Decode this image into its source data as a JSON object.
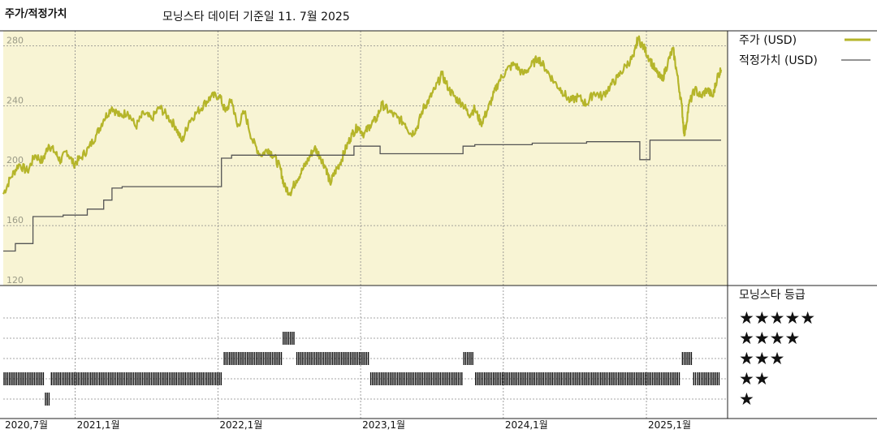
{
  "header": {
    "chart_title": "주가/적정가치",
    "as_of": "모닝스타 데이터 기준일 11. 7월 2025"
  },
  "legend": {
    "price_label": "주가 (USD)",
    "fair_value_label": "적정가치 (USD)",
    "rating_title": "모닝스타 등급",
    "price_color": "#b5b52a",
    "fair_value_color": "#555555"
  },
  "rating_labels": [
    "★★★★★",
    "★★★★",
    "★★★",
    "★★",
    "★"
  ],
  "chart_data": {
    "type": "line",
    "title": "주가/적정가치",
    "ylabel": "",
    "ylim": [
      120,
      290
    ],
    "yticks": [
      120,
      160,
      200,
      240,
      280
    ],
    "xlim": [
      "2020-07-01",
      "2025-07-11"
    ],
    "xticks": [
      {
        "date": "2020-07-01",
        "label": "2020,7월"
      },
      {
        "date": "2021-01-01",
        "label": "2021,1월"
      },
      {
        "date": "2022-01-01",
        "label": "2022,1월"
      },
      {
        "date": "2023-01-01",
        "label": "2023,1월"
      },
      {
        "date": "2024-01-01",
        "label": "2024,1월"
      },
      {
        "date": "2025-01-01",
        "label": "2025,1월"
      }
    ],
    "series": [
      {
        "name": "주가 (USD)",
        "points": [
          [
            "2020-07-01",
            181
          ],
          [
            "2020-07-20",
            192
          ],
          [
            "2020-08-10",
            201
          ],
          [
            "2020-09-01",
            196
          ],
          [
            "2020-09-20",
            207
          ],
          [
            "2020-10-10",
            203
          ],
          [
            "2020-10-25",
            214
          ],
          [
            "2020-11-10",
            209
          ],
          [
            "2020-11-25",
            203
          ],
          [
            "2020-12-10",
            210
          ],
          [
            "2020-12-28",
            201
          ],
          [
            "2021-01-15",
            205
          ],
          [
            "2021-02-05",
            212
          ],
          [
            "2021-02-25",
            221
          ],
          [
            "2021-03-15",
            231
          ],
          [
            "2021-04-05",
            239
          ],
          [
            "2021-04-25",
            233
          ],
          [
            "2021-05-15",
            236
          ],
          [
            "2021-06-05",
            226
          ],
          [
            "2021-06-25",
            235
          ],
          [
            "2021-07-15",
            231
          ],
          [
            "2021-08-05",
            239
          ],
          [
            "2021-08-25",
            233
          ],
          [
            "2021-09-15",
            226
          ],
          [
            "2021-10-01",
            216
          ],
          [
            "2021-10-20",
            230
          ],
          [
            "2021-11-10",
            236
          ],
          [
            "2021-11-30",
            242
          ],
          [
            "2021-12-15",
            246
          ],
          [
            "2022-01-05",
            247
          ],
          [
            "2022-01-20",
            236
          ],
          [
            "2022-02-05",
            244
          ],
          [
            "2022-02-20",
            226
          ],
          [
            "2022-03-10",
            236
          ],
          [
            "2022-03-30",
            217
          ],
          [
            "2022-04-20",
            207
          ],
          [
            "2022-05-10",
            211
          ],
          [
            "2022-05-25",
            206
          ],
          [
            "2022-06-10",
            198
          ],
          [
            "2022-06-20",
            186
          ],
          [
            "2022-07-05",
            182
          ],
          [
            "2022-07-20",
            190
          ],
          [
            "2022-08-05",
            197
          ],
          [
            "2022-08-20",
            204
          ],
          [
            "2022-09-05",
            212
          ],
          [
            "2022-09-20",
            206
          ],
          [
            "2022-10-05",
            198
          ],
          [
            "2022-10-15",
            188
          ],
          [
            "2022-10-28",
            196
          ],
          [
            "2022-11-10",
            202
          ],
          [
            "2022-11-25",
            212
          ],
          [
            "2022-12-10",
            221
          ],
          [
            "2022-12-25",
            226
          ],
          [
            "2023-01-10",
            221
          ],
          [
            "2023-01-25",
            227
          ],
          [
            "2023-02-10",
            231
          ],
          [
            "2023-02-25",
            241
          ],
          [
            "2023-03-15",
            236
          ],
          [
            "2023-04-05",
            232
          ],
          [
            "2023-04-25",
            228
          ],
          [
            "2023-05-10",
            221
          ],
          [
            "2023-05-25",
            225
          ],
          [
            "2023-06-10",
            238
          ],
          [
            "2023-06-25",
            244
          ],
          [
            "2023-07-10",
            251
          ],
          [
            "2023-07-28",
            261
          ],
          [
            "2023-08-15",
            251
          ],
          [
            "2023-09-01",
            245
          ],
          [
            "2023-09-20",
            241
          ],
          [
            "2023-10-05",
            234
          ],
          [
            "2023-10-20",
            238
          ],
          [
            "2023-11-05",
            228
          ],
          [
            "2023-11-20",
            236
          ],
          [
            "2023-12-05",
            246
          ],
          [
            "2023-12-20",
            256
          ],
          [
            "2024-01-10",
            264
          ],
          [
            "2024-01-30",
            268
          ],
          [
            "2024-02-20",
            261
          ],
          [
            "2024-03-10",
            266
          ],
          [
            "2024-03-30",
            272
          ],
          [
            "2024-04-20",
            264
          ],
          [
            "2024-05-10",
            256
          ],
          [
            "2024-05-30",
            250
          ],
          [
            "2024-06-20",
            243
          ],
          [
            "2024-07-10",
            246
          ],
          [
            "2024-08-01",
            241
          ],
          [
            "2024-08-20",
            249
          ],
          [
            "2024-09-10",
            246
          ],
          [
            "2024-09-30",
            253
          ],
          [
            "2024-10-20",
            259
          ],
          [
            "2024-11-10",
            267
          ],
          [
            "2024-11-30",
            273
          ],
          [
            "2024-12-10",
            285
          ],
          [
            "2024-12-25",
            279
          ],
          [
            "2025-01-10",
            271
          ],
          [
            "2025-01-25",
            263
          ],
          [
            "2025-02-10",
            257
          ],
          [
            "2025-02-25",
            269
          ],
          [
            "2025-03-10",
            278
          ],
          [
            "2025-03-20",
            262
          ],
          [
            "2025-04-01",
            241
          ],
          [
            "2025-04-08",
            220
          ],
          [
            "2025-04-20",
            241
          ],
          [
            "2025-05-05",
            251
          ],
          [
            "2025-05-20",
            246
          ],
          [
            "2025-06-05",
            251
          ],
          [
            "2025-06-20",
            246
          ],
          [
            "2025-07-01",
            259
          ],
          [
            "2025-07-11",
            264
          ]
        ]
      },
      {
        "name": "적정가치 (USD)",
        "step": true,
        "points": [
          [
            "2020-07-01",
            143
          ],
          [
            "2020-08-01",
            148
          ],
          [
            "2020-09-15",
            166
          ],
          [
            "2020-12-01",
            167
          ],
          [
            "2021-02-01",
            171
          ],
          [
            "2021-03-15",
            177
          ],
          [
            "2021-04-05",
            185
          ],
          [
            "2021-05-01",
            186
          ],
          [
            "2022-01-10",
            205
          ],
          [
            "2022-02-05",
            207
          ],
          [
            "2022-12-15",
            213
          ],
          [
            "2023-02-20",
            208
          ],
          [
            "2023-09-20",
            213
          ],
          [
            "2023-10-20",
            214
          ],
          [
            "2024-03-15",
            215
          ],
          [
            "2024-08-01",
            216
          ],
          [
            "2024-12-15",
            204
          ],
          [
            "2025-01-10",
            217
          ],
          [
            "2025-07-11",
            217
          ]
        ]
      }
    ]
  },
  "rating_data": {
    "levels": [
      5,
      4,
      3,
      2,
      1
    ],
    "periods": [
      {
        "start": "2020-07-01",
        "end": "2020-10-15",
        "stars": 2
      },
      {
        "start": "2020-10-15",
        "end": "2020-10-30",
        "stars": 1
      },
      {
        "start": "2020-10-30",
        "end": "2022-01-15",
        "stars": 2
      },
      {
        "start": "2022-01-15",
        "end": "2022-06-15",
        "stars": 3
      },
      {
        "start": "2022-06-15",
        "end": "2022-07-20",
        "stars": 4
      },
      {
        "start": "2022-07-20",
        "end": "2023-01-25",
        "stars": 3
      },
      {
        "start": "2023-01-25",
        "end": "2023-09-20",
        "stars": 2
      },
      {
        "start": "2023-09-20",
        "end": "2023-10-20",
        "stars": 3
      },
      {
        "start": "2023-10-20",
        "end": "2025-04-01",
        "stars": 2
      },
      {
        "start": "2025-04-01",
        "end": "2025-04-30",
        "stars": 3
      },
      {
        "start": "2025-04-30",
        "end": "2025-05-10",
        "stars": 2
      },
      {
        "start": "2025-05-10",
        "end": "2025-07-11",
        "stars": 2
      }
    ]
  }
}
